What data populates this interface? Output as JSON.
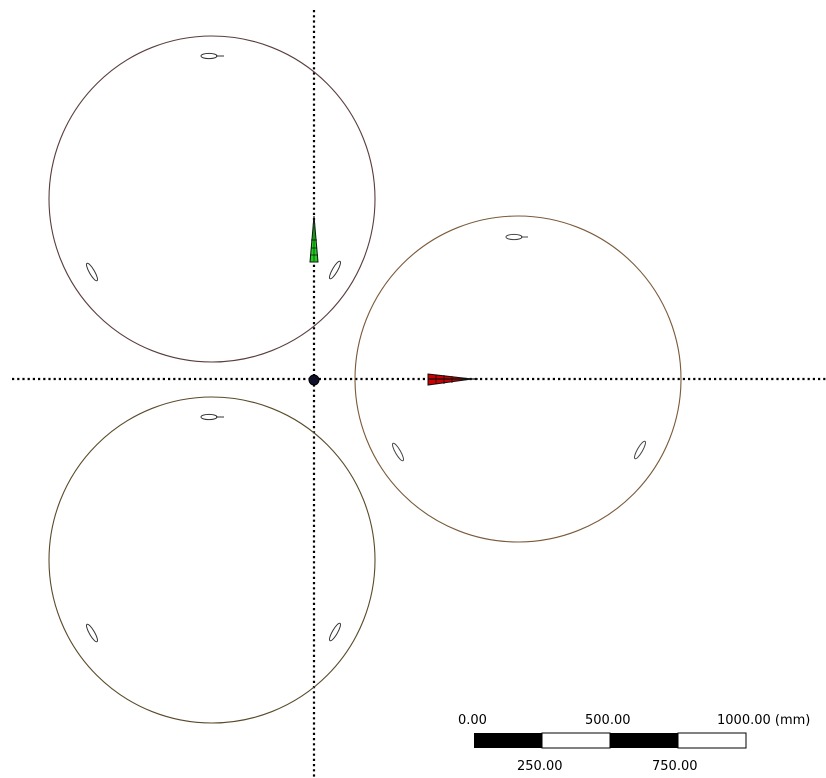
{
  "viewport": {
    "background": "#ffffff",
    "axis_color": "#000000",
    "origin_color": "#000000",
    "axes": {
      "x_axis_color": "#cc0000",
      "y_axis_color": "#22cc22",
      "style": "dotted"
    },
    "rotors": [
      {
        "name": "rotor-top-left",
        "circle_color": "#3c2e2e",
        "blade_color": "#3c3c28",
        "blade_count": 3
      },
      {
        "name": "rotor-right",
        "circle_color": "#6b5030",
        "blade_color": "#4a4a20",
        "blade_count": 3
      },
      {
        "name": "rotor-bottom-left",
        "circle_color": "#4a3a20",
        "blade_color": "#3c3c28",
        "blade_count": 3
      }
    ]
  },
  "scale_bar": {
    "top_labels": [
      "0.00",
      "500.00",
      "1000.00 (mm)"
    ],
    "bottom_labels": [
      "250.00",
      "750.00"
    ],
    "colors": {
      "filled": "#000000",
      "empty": "#ffffff"
    }
  }
}
